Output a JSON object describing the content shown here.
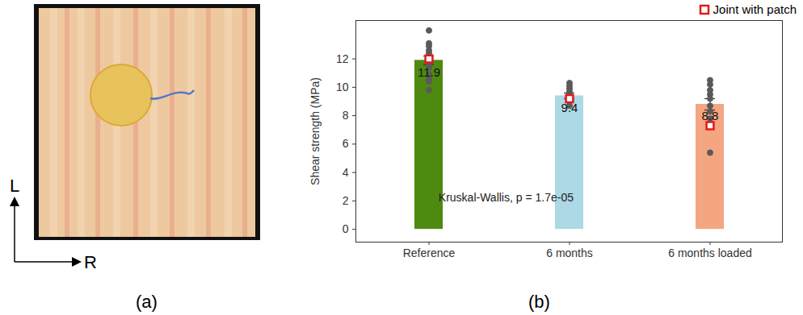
{
  "panel_labels": [
    "(a)",
    "(b)"
  ],
  "panel_a": {
    "vertical_axis": "L",
    "horizontal_axis": "R"
  },
  "chart_data": {
    "type": "bar",
    "ylabel": "Shear strength (MPa)",
    "categories": [
      "Reference",
      "6 months",
      "6 months loaded"
    ],
    "values": [
      11.9,
      9.4,
      8.8
    ],
    "errors": [
      0.3,
      0.2,
      0.4
    ],
    "colors": [
      "#4f8a10",
      "#add8e6",
      "#f4a582"
    ],
    "data_labels": true,
    "series": [
      {
        "type": "scatter",
        "marker": "circle",
        "color": "#5a5a5a",
        "values": [
          [
            14.0,
            13.1,
            12.9,
            12.6,
            12.4,
            12.0,
            11.6,
            11.4,
            10.9,
            10.6,
            10.4,
            9.8
          ],
          [
            10.3,
            10.1,
            9.9,
            9.7,
            9.5,
            9.3,
            9.1,
            9.0,
            8.7
          ],
          [
            10.5,
            10.2,
            9.8,
            9.5,
            9.2,
            8.7,
            8.3,
            7.8,
            7.4,
            5.4
          ]
        ]
      },
      {
        "name": "Joint with patch",
        "type": "scatter",
        "marker": "square",
        "color": "#e31a1c",
        "values": [
          12.0,
          9.2,
          7.3
        ]
      }
    ],
    "annotations": [
      {
        "text": "Kruskal-Wallis, p = 1.7e-05",
        "x": "6 months",
        "y": 2.2
      }
    ],
    "ylim": [
      -0.9,
      14.7
    ],
    "yticks": [
      0,
      2,
      4,
      6,
      8,
      10,
      12
    ],
    "grid": false,
    "legend": "top-right"
  }
}
